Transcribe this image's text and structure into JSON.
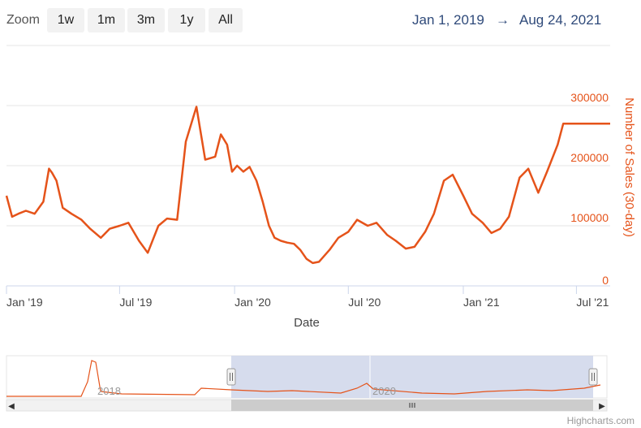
{
  "toolbar": {
    "zoom_label": "Zoom",
    "buttons": [
      "1w",
      "1m",
      "3m",
      "1y",
      "All"
    ],
    "range_from": "Jan 1, 2019",
    "range_arrow": "→",
    "range_to": "Aug 24, 2021"
  },
  "credits": "Highcharts.com",
  "colors": {
    "series": "#e5531a",
    "axis_title": "#e5531a",
    "navigator_mask": "#cfd6ea"
  },
  "chart_data": {
    "type": "line",
    "xlabel": "Date",
    "ylabel": "Number of Sales (30-day)",
    "x_range": [
      "2019-01-01",
      "2021-08-24"
    ],
    "ylim": [
      0,
      300000
    ],
    "y_ticks": [
      0,
      100000,
      200000,
      300000
    ],
    "x_ticks": [
      "Jan '19",
      "Jul '19",
      "Jan '20",
      "Jul '20",
      "Jan '21",
      "Jul '21"
    ],
    "grid": true,
    "series": [
      {
        "x": [
          "2019-01-01",
          "2019-01-10",
          "2019-01-20",
          "2019-02-01",
          "2019-02-15",
          "2019-03-01",
          "2019-03-10",
          "2019-03-15",
          "2019-03-22",
          "2019-04-01",
          "2019-04-15",
          "2019-05-01",
          "2019-05-15",
          "2019-06-01",
          "2019-06-15",
          "2019-07-01",
          "2019-07-15",
          "2019-08-01",
          "2019-08-15",
          "2019-09-01",
          "2019-09-15",
          "2019-10-01",
          "2019-10-15",
          "2019-11-01",
          "2019-11-15",
          "2019-12-01",
          "2019-12-10",
          "2019-12-20",
          "2019-12-28",
          "2020-01-05",
          "2020-01-15",
          "2020-01-25",
          "2020-02-05",
          "2020-02-15",
          "2020-02-25",
          "2020-03-05",
          "2020-03-15",
          "2020-03-25",
          "2020-04-05",
          "2020-04-15",
          "2020-04-25",
          "2020-05-05",
          "2020-05-15",
          "2020-06-01",
          "2020-06-15",
          "2020-07-01",
          "2020-07-15",
          "2020-08-01",
          "2020-08-15",
          "2020-09-01",
          "2020-09-15",
          "2020-10-01",
          "2020-10-15",
          "2020-11-01",
          "2020-11-15",
          "2020-12-01",
          "2020-12-15",
          "2021-01-01",
          "2021-01-15",
          "2021-02-01",
          "2021-02-15",
          "2021-03-01",
          "2021-03-15",
          "2021-04-01",
          "2021-04-15",
          "2021-05-01",
          "2021-05-15",
          "2021-06-01",
          "2021-06-10",
          "2021-06-20",
          "2021-07-01",
          "2021-07-10",
          "2021-07-20",
          "2021-08-01",
          "2021-08-10",
          "2021-08-18",
          "2021-08-24"
        ],
        "y": [
          150000,
          115000,
          120000,
          125000,
          120000,
          140000,
          195000,
          188000,
          175000,
          130000,
          120000,
          110000,
          95000,
          80000,
          95000,
          100000,
          105000,
          75000,
          55000,
          100000,
          112000,
          110000,
          240000,
          298000,
          210000,
          215000,
          252000,
          235000,
          190000,
          200000,
          190000,
          198000,
          175000,
          140000,
          100000,
          80000,
          75000,
          72000,
          70000,
          60000,
          45000,
          38000,
          40000,
          60000,
          80000,
          90000,
          110000,
          100000,
          105000,
          85000,
          75000,
          62000,
          65000,
          90000,
          120000,
          175000,
          185000,
          150000,
          120000,
          105000,
          88000,
          95000,
          115000,
          180000,
          195000,
          155000,
          190000,
          235000,
          270000,
          270000,
          270000,
          270000,
          270000,
          270000,
          270000,
          270000,
          270000
        ]
      }
    ]
  }
}
